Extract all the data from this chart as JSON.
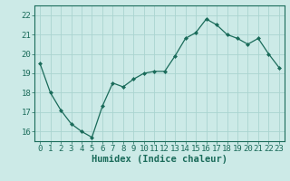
{
  "x": [
    0,
    1,
    2,
    3,
    4,
    5,
    6,
    7,
    8,
    9,
    10,
    11,
    12,
    13,
    14,
    15,
    16,
    17,
    18,
    19,
    20,
    21,
    22,
    23
  ],
  "y": [
    19.5,
    18.0,
    17.1,
    16.4,
    16.0,
    15.7,
    17.3,
    18.5,
    18.3,
    18.7,
    19.0,
    19.1,
    19.1,
    19.9,
    20.8,
    21.1,
    21.8,
    21.5,
    21.0,
    20.8,
    20.5,
    20.8,
    20.0,
    19.3
  ],
  "line_color": "#1a6b5a",
  "marker": "D",
  "marker_size": 2,
  "bg_color": "#cceae7",
  "grid_color": "#aad4d0",
  "xlabel": "Humidex (Indice chaleur)",
  "ylim": [
    15.5,
    22.5
  ],
  "xlim": [
    -0.5,
    23.5
  ],
  "yticks": [
    16,
    17,
    18,
    19,
    20,
    21,
    22
  ],
  "xticks": [
    0,
    1,
    2,
    3,
    4,
    5,
    6,
    7,
    8,
    9,
    10,
    11,
    12,
    13,
    14,
    15,
    16,
    17,
    18,
    19,
    20,
    21,
    22,
    23
  ],
  "tick_fontsize": 6.5,
  "xlabel_fontsize": 7.5
}
